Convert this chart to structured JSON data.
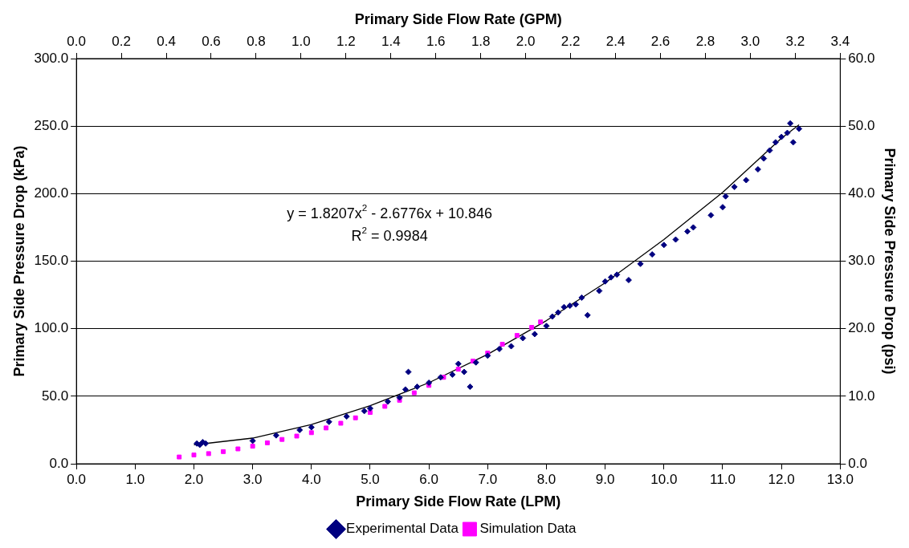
{
  "chart_data": {
    "type": "scatter",
    "xlabel": "Primary Side Flow Rate (LPM)",
    "x2label": "Primary Side Flow Rate (GPM)",
    "ylabel": "Primary Side Pressure Drop (kPa)",
    "y2label": "Primary Side Pressure Drop (psi)",
    "xlim": [
      0,
      13
    ],
    "xticks": [
      {
        "value": 0,
        "label": "0.0"
      },
      {
        "value": 1,
        "label": "1.0"
      },
      {
        "value": 2,
        "label": "2.0"
      },
      {
        "value": 3,
        "label": "3.0"
      },
      {
        "value": 4,
        "label": "4.0"
      },
      {
        "value": 5,
        "label": "5.0"
      },
      {
        "value": 6,
        "label": "6.0"
      },
      {
        "value": 7,
        "label": "7.0"
      },
      {
        "value": 8,
        "label": "8.0"
      },
      {
        "value": 9,
        "label": "9.0"
      },
      {
        "value": 10,
        "label": "10.0"
      },
      {
        "value": 11,
        "label": "11.0"
      },
      {
        "value": 12,
        "label": "12.0"
      },
      {
        "value": 13,
        "label": "13.0"
      }
    ],
    "x2lim": [
      0,
      3.4
    ],
    "x2ticks": [
      {
        "value": 0,
        "label": "0.0"
      },
      0.2,
      0.4,
      0.6,
      0.8,
      {
        "value": 1,
        "label": "1.0"
      },
      1.2,
      1.4,
      1.6,
      1.8,
      {
        "value": 2,
        "label": "2.0"
      },
      2.2,
      2.4,
      2.6,
      2.8,
      {
        "value": 3,
        "label": "3.0"
      },
      3.2,
      3.4
    ],
    "ylim": [
      0,
      300
    ],
    "yticks": [
      {
        "value": 0,
        "label": "0.0"
      },
      {
        "value": 50,
        "label": "50.0"
      },
      {
        "value": 100,
        "label": "100.0"
      },
      {
        "value": 150,
        "label": "150.0"
      },
      {
        "value": 200,
        "label": "200.0"
      },
      {
        "value": 250,
        "label": "250.0"
      },
      {
        "value": 300,
        "label": "300.0"
      }
    ],
    "y2lim": [
      0,
      60
    ],
    "y2ticks": [
      {
        "value": 0,
        "label": "0.0"
      },
      {
        "value": 10,
        "label": "10.0"
      },
      {
        "value": 20,
        "label": "20.0"
      },
      {
        "value": 30,
        "label": "30.0"
      },
      {
        "value": 40,
        "label": "40.0"
      },
      {
        "value": 50,
        "label": "50.0"
      },
      {
        "value": 60,
        "label": "60.0"
      }
    ],
    "grid": "y",
    "legend": "bottom",
    "annotations": [
      "y = 1.8207x$^{2}$ - 2.6776x + 10.846",
      "R$^{2}$ = 0.9984"
    ],
    "series": [
      {
        "name": "Experimental Data",
        "color": "#000080",
        "marker": "diamond",
        "x": [
          2.05,
          2.1,
          2.15,
          2.2,
          3.0,
          3.4,
          3.8,
          4.0,
          4.3,
          4.6,
          4.9,
          5.0,
          5.3,
          5.5,
          5.6,
          5.65,
          5.8,
          6.0,
          6.2,
          6.4,
          6.5,
          6.6,
          6.7,
          6.8,
          7.0,
          7.2,
          7.4,
          7.6,
          7.8,
          8.0,
          8.1,
          8.2,
          8.3,
          8.4,
          8.5,
          8.6,
          8.7,
          8.9,
          9.0,
          9.1,
          9.2,
          9.4,
          9.6,
          9.8,
          10.0,
          10.2,
          10.4,
          10.5,
          10.8,
          11.0,
          11.05,
          11.2,
          11.4,
          11.6,
          11.7,
          11.8,
          11.9,
          12.0,
          12.1,
          12.15,
          12.2,
          12.3
        ],
        "values": [
          15,
          14,
          16,
          15,
          17,
          21,
          25,
          27,
          31,
          35,
          39,
          41,
          46,
          49,
          55,
          68,
          57,
          60,
          64,
          66,
          74,
          68,
          57,
          75,
          80,
          85,
          87,
          93,
          96,
          102,
          109,
          112,
          116,
          117,
          118,
          123,
          110,
          128,
          135,
          138,
          140,
          136,
          148,
          155,
          162,
          166,
          172,
          175,
          184,
          190,
          198,
          205,
          210,
          218,
          226,
          232,
          238,
          242,
          245,
          252,
          238,
          248
        ]
      },
      {
        "name": "Simulation Data",
        "color": "#ff00ff",
        "marker": "square",
        "x": [
          1.75,
          2.0,
          2.25,
          2.5,
          2.75,
          3.0,
          3.25,
          3.5,
          3.75,
          4.0,
          4.25,
          4.5,
          4.75,
          5.0,
          5.25,
          5.5,
          5.75,
          6.0,
          6.25,
          6.5,
          6.75,
          7.0,
          7.25,
          7.5,
          7.75,
          7.9
        ],
        "values": [
          5,
          6.5,
          7.5,
          9,
          11,
          13,
          15.5,
          18,
          20.5,
          23,
          26.5,
          30,
          34,
          38,
          42.5,
          47,
          52.5,
          58,
          64,
          70,
          76,
          82,
          88.5,
          95,
          101,
          105
        ]
      },
      {
        "type": "line",
        "color": "#000000",
        "marker": "none",
        "x": [
          2.0,
          3.0,
          4.0,
          5.0,
          6.0,
          7.0,
          8.0,
          9.0,
          10.0,
          11.0,
          12.0,
          12.3
        ],
        "values": [
          14,
          19,
          29,
          43,
          60,
          81,
          106,
          134,
          166,
          201,
          241,
          251
        ]
      }
    ]
  }
}
